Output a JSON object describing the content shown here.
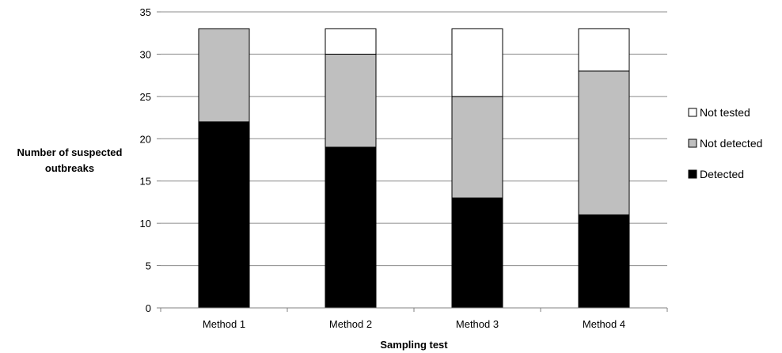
{
  "chart_data": {
    "type": "bar",
    "stacked": true,
    "categories": [
      "Method 1",
      "Method 2",
      "Method 3",
      "Method 4"
    ],
    "series": [
      {
        "name": "Detected",
        "values": [
          22,
          19,
          13,
          11
        ],
        "color": "#000000"
      },
      {
        "name": "Not detected",
        "values": [
          11,
          11,
          12,
          17
        ],
        "color": "#bfbfbf"
      },
      {
        "name": "Not tested",
        "values": [
          0,
          3,
          8,
          5
        ],
        "color": "#ffffff"
      }
    ],
    "legend_order": [
      "Not tested",
      "Not detected",
      "Detected"
    ],
    "legend_position": "right",
    "xlabel": "Sampling test",
    "ylabel": [
      "Number of suspected",
      "outbreaks"
    ],
    "ylim": [
      0,
      35
    ],
    "yticks": [
      "0",
      "5",
      "10",
      "15",
      "20",
      "25",
      "30",
      "35"
    ],
    "grid": true,
    "title": ""
  }
}
